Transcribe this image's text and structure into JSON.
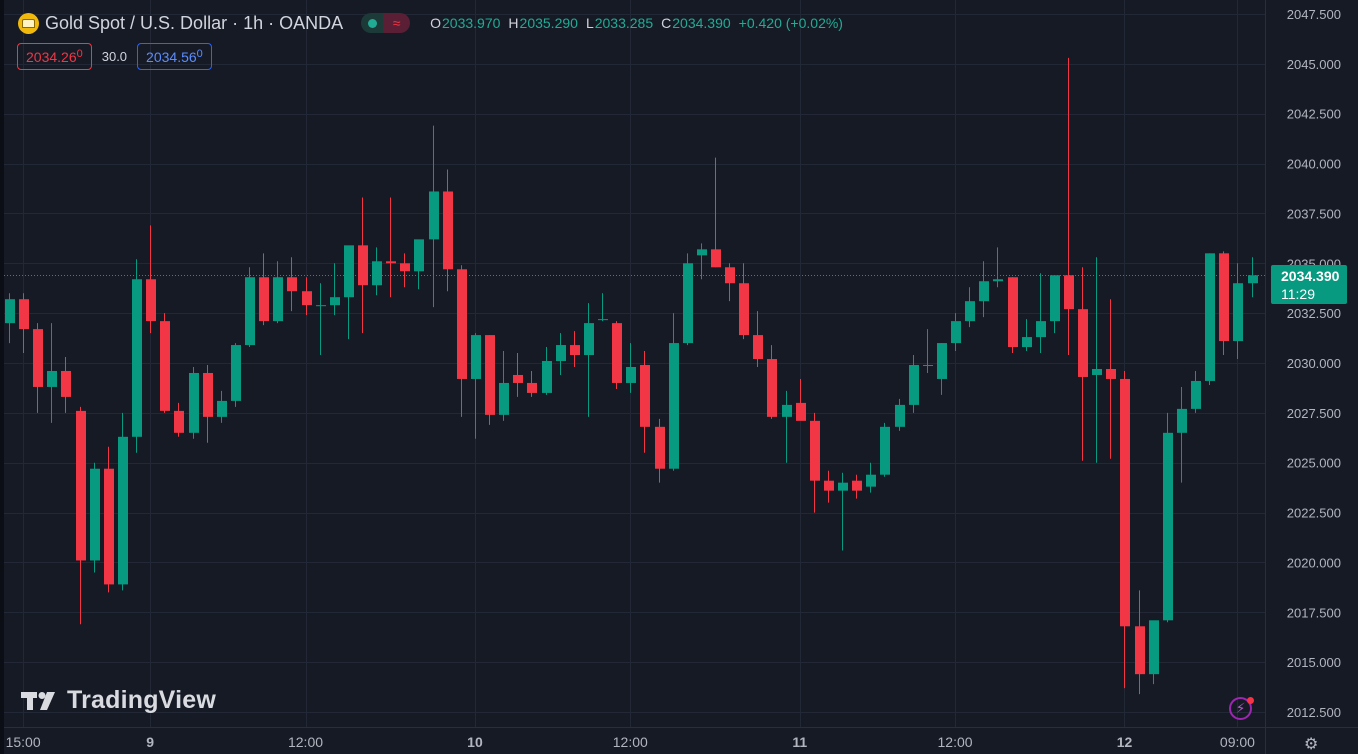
{
  "header": {
    "title": "Gold Spot / U.S. Dollar · 1h · OANDA",
    "ohlc": {
      "o_label": "O",
      "o_value": "2033.970",
      "h_label": "H",
      "h_value": "2035.290",
      "l_label": "L",
      "l_value": "2033.285",
      "c_label": "C",
      "c_value": "2034.390",
      "change": "+0.420 (+0.02%)"
    },
    "bid": {
      "main": "2034.26",
      "small": "0"
    },
    "spread": "30.0",
    "ask": {
      "main": "2034.56",
      "small": "0"
    }
  },
  "price_tag": {
    "price": "2034.390",
    "countdown": "11:29"
  },
  "watermark": "TradingView",
  "icons": {
    "symbol": "gold-coin-icon",
    "market_open": "market-open-dot-icon",
    "indicator": "wave-icon",
    "logo": "tradingview-logo-icon",
    "bolt": "lightning-icon",
    "settings": "gear-icon"
  },
  "colors": {
    "background": "#161a25",
    "up": "#089981",
    "down": "#f23645",
    "grid": "#232836",
    "text": "#d1d4dc"
  },
  "chart_data": {
    "type": "candlestick",
    "title": "Gold Spot / U.S. Dollar · 1h · OANDA",
    "ylim": [
      2011.5,
      2048.0
    ],
    "y_ticks": [
      "2047.500",
      "2045.000",
      "2042.500",
      "2040.000",
      "2037.500",
      "2035.000",
      "2032.500",
      "2030.000",
      "2027.500",
      "2025.000",
      "2022.500",
      "2020.000",
      "2017.500",
      "2015.000",
      "2012.500"
    ],
    "x_ticks": [
      {
        "label": "15:00",
        "index": 1
      },
      {
        "label": "9",
        "index": 10
      },
      {
        "label": "12:00",
        "index": 21
      },
      {
        "label": "10",
        "index": 33
      },
      {
        "label": "12:00",
        "index": 44
      },
      {
        "label": "11",
        "index": 56
      },
      {
        "label": "12:00",
        "index": 67
      },
      {
        "label": "12",
        "index": 79
      },
      {
        "label": "09:00",
        "index": 87
      }
    ],
    "current_price": 2034.39,
    "grid": true,
    "candles": [
      {
        "o": 2032.0,
        "h": 2033.5,
        "l": 2031.0,
        "c": 2033.2
      },
      {
        "o": 2033.2,
        "h": 2033.5,
        "l": 2030.5,
        "c": 2031.7
      },
      {
        "o": 2031.7,
        "h": 2032.0,
        "l": 2027.5,
        "c": 2028.8
      },
      {
        "o": 2028.8,
        "h": 2032.0,
        "l": 2027.0,
        "c": 2029.6
      },
      {
        "o": 2029.6,
        "h": 2030.3,
        "l": 2027.5,
        "c": 2028.3
      },
      {
        "o": 2027.6,
        "h": 2027.8,
        "l": 2016.9,
        "c": 2020.1
      },
      {
        "o": 2020.1,
        "h": 2025.0,
        "l": 2019.5,
        "c": 2024.7
      },
      {
        "o": 2024.7,
        "h": 2025.8,
        "l": 2018.5,
        "c": 2018.9
      },
      {
        "o": 2018.9,
        "h": 2027.5,
        "l": 2018.6,
        "c": 2026.3
      },
      {
        "o": 2026.3,
        "h": 2035.2,
        "l": 2025.5,
        "c": 2034.2
      },
      {
        "o": 2034.2,
        "h": 2036.9,
        "l": 2031.5,
        "c": 2032.1
      },
      {
        "o": 2032.1,
        "h": 2032.5,
        "l": 2027.5,
        "c": 2027.6
      },
      {
        "o": 2027.6,
        "h": 2028.0,
        "l": 2026.3,
        "c": 2026.5
      },
      {
        "o": 2026.5,
        "h": 2029.8,
        "l": 2026.2,
        "c": 2029.5
      },
      {
        "o": 2029.5,
        "h": 2029.9,
        "l": 2026.0,
        "c": 2027.3
      },
      {
        "o": 2027.3,
        "h": 2028.6,
        "l": 2027.0,
        "c": 2028.1
      },
      {
        "o": 2028.1,
        "h": 2031.0,
        "l": 2027.8,
        "c": 2030.9
      },
      {
        "o": 2030.9,
        "h": 2034.8,
        "l": 2030.8,
        "c": 2034.3
      },
      {
        "o": 2034.3,
        "h": 2035.5,
        "l": 2031.9,
        "c": 2032.1
      },
      {
        "o": 2032.1,
        "h": 2035.1,
        "l": 2032.0,
        "c": 2034.3
      },
      {
        "o": 2034.3,
        "h": 2035.3,
        "l": 2032.6,
        "c": 2033.6
      },
      {
        "o": 2033.6,
        "h": 2034.3,
        "l": 2032.4,
        "c": 2032.9
      },
      {
        "o": 2032.9,
        "h": 2034.0,
        "l": 2030.4,
        "c": 2032.9
      },
      {
        "o": 2032.9,
        "h": 2035.0,
        "l": 2032.4,
        "c": 2033.3
      },
      {
        "o": 2033.3,
        "h": 2035.8,
        "l": 2031.2,
        "c": 2035.9
      },
      {
        "o": 2035.9,
        "h": 2038.3,
        "l": 2031.5,
        "c": 2033.9
      },
      {
        "o": 2033.9,
        "h": 2035.8,
        "l": 2033.4,
        "c": 2035.1
      },
      {
        "o": 2035.1,
        "h": 2038.3,
        "l": 2033.3,
        "c": 2035.0
      },
      {
        "o": 2035.0,
        "h": 2035.5,
        "l": 2033.8,
        "c": 2034.6
      },
      {
        "o": 2034.6,
        "h": 2036.1,
        "l": 2033.7,
        "c": 2036.2
      },
      {
        "o": 2036.2,
        "h": 2041.9,
        "l": 2032.8,
        "c": 2038.6
      },
      {
        "o": 2038.6,
        "h": 2039.7,
        "l": 2033.6,
        "c": 2034.7
      },
      {
        "o": 2034.7,
        "h": 2034.9,
        "l": 2027.3,
        "c": 2029.2
      },
      {
        "o": 2029.2,
        "h": 2031.5,
        "l": 2026.2,
        "c": 2031.4
      },
      {
        "o": 2031.4,
        "h": 2031.4,
        "l": 2026.9,
        "c": 2027.4
      },
      {
        "o": 2027.4,
        "h": 2030.6,
        "l": 2027.1,
        "c": 2029.0
      },
      {
        "o": 2029.4,
        "h": 2030.5,
        "l": 2028.3,
        "c": 2029.0
      },
      {
        "o": 2029.0,
        "h": 2029.6,
        "l": 2028.3,
        "c": 2028.5
      },
      {
        "o": 2028.5,
        "h": 2030.8,
        "l": 2028.4,
        "c": 2030.1
      },
      {
        "o": 2030.1,
        "h": 2031.5,
        "l": 2029.4,
        "c": 2030.9
      },
      {
        "o": 2030.9,
        "h": 2031.6,
        "l": 2029.8,
        "c": 2030.4
      },
      {
        "o": 2030.4,
        "h": 2033.0,
        "l": 2027.3,
        "c": 2032.0
      },
      {
        "o": 2032.2,
        "h": 2033.5,
        "l": 2032.1,
        "c": 2032.2
      },
      {
        "o": 2032.0,
        "h": 2032.1,
        "l": 2028.7,
        "c": 2029.0
      },
      {
        "o": 2029.0,
        "h": 2031.0,
        "l": 2028.5,
        "c": 2029.8
      },
      {
        "o": 2029.9,
        "h": 2030.6,
        "l": 2025.5,
        "c": 2026.8
      },
      {
        "o": 2026.8,
        "h": 2027.2,
        "l": 2024.0,
        "c": 2024.7
      },
      {
        "o": 2024.7,
        "h": 2032.5,
        "l": 2024.6,
        "c": 2031.0
      },
      {
        "o": 2031.0,
        "h": 2035.5,
        "l": 2030.9,
        "c": 2035.0
      },
      {
        "o": 2035.4,
        "h": 2036.0,
        "l": 2034.2,
        "c": 2035.7
      },
      {
        "o": 2035.7,
        "h": 2040.3,
        "l": 2034.8,
        "c": 2034.8
      },
      {
        "o": 2034.8,
        "h": 2035.0,
        "l": 2033.1,
        "c": 2034.0
      },
      {
        "o": 2034.0,
        "h": 2035.0,
        "l": 2031.2,
        "c": 2031.4
      },
      {
        "o": 2031.4,
        "h": 2032.6,
        "l": 2029.8,
        "c": 2030.2
      },
      {
        "o": 2030.2,
        "h": 2030.9,
        "l": 2027.2,
        "c": 2027.3
      },
      {
        "o": 2027.3,
        "h": 2028.6,
        "l": 2025.0,
        "c": 2027.9
      },
      {
        "o": 2028.0,
        "h": 2029.2,
        "l": 2027.4,
        "c": 2027.1
      },
      {
        "o": 2027.1,
        "h": 2027.5,
        "l": 2022.5,
        "c": 2024.1
      },
      {
        "o": 2024.1,
        "h": 2024.6,
        "l": 2023.0,
        "c": 2023.6
      },
      {
        "o": 2023.6,
        "h": 2024.5,
        "l": 2020.6,
        "c": 2024.0
      },
      {
        "o": 2024.1,
        "h": 2024.4,
        "l": 2023.2,
        "c": 2023.6
      },
      {
        "o": 2023.8,
        "h": 2025.0,
        "l": 2023.5,
        "c": 2024.4
      },
      {
        "o": 2024.4,
        "h": 2027.0,
        "l": 2024.3,
        "c": 2026.8
      },
      {
        "o": 2026.8,
        "h": 2028.2,
        "l": 2026.6,
        "c": 2027.9
      },
      {
        "o": 2027.9,
        "h": 2030.4,
        "l": 2027.5,
        "c": 2029.9
      },
      {
        "o": 2029.9,
        "h": 2031.7,
        "l": 2029.5,
        "c": 2029.9
      },
      {
        "o": 2029.2,
        "h": 2031.0,
        "l": 2028.4,
        "c": 2031.0
      },
      {
        "o": 2031.0,
        "h": 2032.5,
        "l": 2030.6,
        "c": 2032.1
      },
      {
        "o": 2032.1,
        "h": 2033.8,
        "l": 2031.8,
        "c": 2033.1
      },
      {
        "o": 2033.1,
        "h": 2035.1,
        "l": 2032.3,
        "c": 2034.1
      },
      {
        "o": 2034.1,
        "h": 2035.8,
        "l": 2033.8,
        "c": 2034.2
      },
      {
        "o": 2034.3,
        "h": 2034.3,
        "l": 2030.5,
        "c": 2030.8
      },
      {
        "o": 2030.8,
        "h": 2032.2,
        "l": 2030.6,
        "c": 2031.3
      },
      {
        "o": 2031.3,
        "h": 2034.5,
        "l": 2030.5,
        "c": 2032.1
      },
      {
        "o": 2032.1,
        "h": 2034.2,
        "l": 2031.5,
        "c": 2034.4
      },
      {
        "o": 2034.4,
        "h": 2045.3,
        "l": 2030.4,
        "c": 2032.7
      },
      {
        "o": 2032.7,
        "h": 2034.8,
        "l": 2025.1,
        "c": 2029.3
      },
      {
        "o": 2029.4,
        "h": 2035.3,
        "l": 2025.0,
        "c": 2029.7
      },
      {
        "o": 2029.7,
        "h": 2033.2,
        "l": 2025.2,
        "c": 2029.2
      },
      {
        "o": 2029.2,
        "h": 2029.6,
        "l": 2013.7,
        "c": 2016.8
      },
      {
        "o": 2016.8,
        "h": 2018.6,
        "l": 2013.4,
        "c": 2014.4
      },
      {
        "o": 2014.4,
        "h": 2017.0,
        "l": 2013.9,
        "c": 2017.1
      },
      {
        "o": 2017.1,
        "h": 2027.5,
        "l": 2017.0,
        "c": 2026.5
      },
      {
        "o": 2026.5,
        "h": 2028.8,
        "l": 2024.0,
        "c": 2027.7
      },
      {
        "o": 2027.7,
        "h": 2029.6,
        "l": 2027.5,
        "c": 2029.1
      },
      {
        "o": 2029.1,
        "h": 2035.5,
        "l": 2028.9,
        "c": 2035.5
      },
      {
        "o": 2035.5,
        "h": 2035.6,
        "l": 2030.4,
        "c": 2031.1
      },
      {
        "o": 2031.1,
        "h": 2035.0,
        "l": 2030.2,
        "c": 2034.0
      },
      {
        "o": 2034.0,
        "h": 2035.3,
        "l": 2033.3,
        "c": 2034.4
      }
    ]
  }
}
